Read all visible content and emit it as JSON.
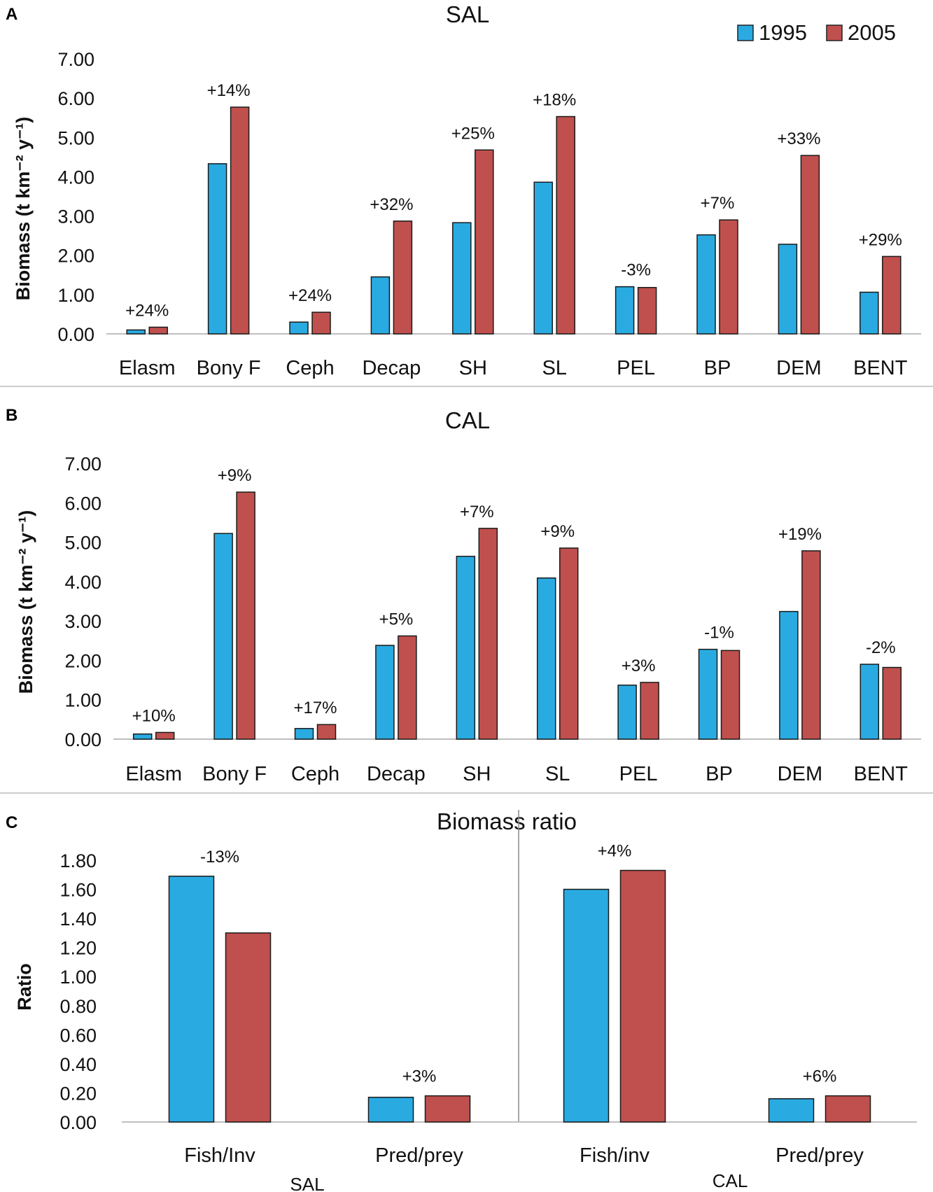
{
  "legend": {
    "series": [
      {
        "name": "1995",
        "color": "#29abe2"
      },
      {
        "name": "2005",
        "color": "#c0504d"
      }
    ]
  },
  "chart_data": [
    {
      "panel": "A",
      "type": "bar",
      "title": "SAL",
      "ylabel": "Biomass (t km⁻² y⁻¹)",
      "ylim": [
        0,
        7
      ],
      "yticks": [
        "0.00",
        "1.00",
        "2.00",
        "3.00",
        "4.00",
        "5.00",
        "6.00",
        "7.00"
      ],
      "categories": [
        "Elasm",
        "Bony F",
        "Ceph",
        "Decap",
        "SH",
        "SL",
        "PEL",
        "BP",
        "DEM",
        "BENT"
      ],
      "series": [
        {
          "name": "1995",
          "values": [
            0.1,
            4.33,
            0.3,
            1.45,
            2.83,
            3.86,
            1.2,
            2.52,
            2.28,
            1.06
          ]
        },
        {
          "name": "2005",
          "values": [
            0.17,
            5.77,
            0.55,
            2.87,
            4.68,
            5.53,
            1.18,
            2.9,
            4.54,
            1.97
          ]
        }
      ],
      "labels": [
        "+24%",
        "+14%",
        "+24%",
        "+32%",
        "+25%",
        "+18%",
        "-3%",
        "+7%",
        "+33%",
        "+29%"
      ]
    },
    {
      "panel": "B",
      "type": "bar",
      "title": "CAL",
      "ylabel": "Biomass (t km⁻² y⁻¹)",
      "ylim": [
        0,
        7
      ],
      "yticks": [
        "0.00",
        "1.00",
        "2.00",
        "3.00",
        "4.00",
        "5.00",
        "6.00",
        "7.00"
      ],
      "categories": [
        "Elasm",
        "Bony F",
        "Ceph",
        "Decap",
        "SH",
        "SL",
        "PEL",
        "BP",
        "DEM",
        "BENT"
      ],
      "series": [
        {
          "name": "1995",
          "values": [
            0.13,
            5.22,
            0.27,
            2.38,
            4.64,
            4.09,
            1.37,
            2.28,
            3.24,
            1.9
          ]
        },
        {
          "name": "2005",
          "values": [
            0.17,
            6.27,
            0.37,
            2.62,
            5.35,
            4.85,
            1.44,
            2.25,
            4.78,
            1.82
          ]
        }
      ],
      "labels": [
        "+10%",
        "+9%",
        "+17%",
        "+5%",
        "+7%",
        "+9%",
        "+3%",
        "-1%",
        "+19%",
        "-2%"
      ]
    },
    {
      "panel": "C",
      "type": "bar",
      "title": "Biomass ratio",
      "ylabel": "Ratio",
      "ylim": [
        0,
        1.8
      ],
      "yticks": [
        "0.00",
        "0.20",
        "0.40",
        "0.60",
        "0.80",
        "1.00",
        "1.20",
        "1.40",
        "1.60",
        "1.80"
      ],
      "categories": [
        "Fish/Inv",
        "Pred/prey",
        "Fish/inv",
        "Pred/prey"
      ],
      "groups": [
        "SAL",
        "CAL"
      ],
      "series": [
        {
          "name": "1995",
          "values": [
            1.69,
            0.17,
            1.6,
            0.16
          ]
        },
        {
          "name": "2005",
          "values": [
            1.3,
            0.18,
            1.73,
            0.18
          ]
        }
      ],
      "labels": [
        "-13%",
        "+3%",
        "+4%",
        "+6%"
      ]
    }
  ]
}
